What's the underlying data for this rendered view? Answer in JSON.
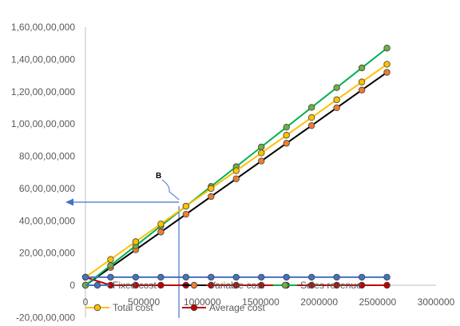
{
  "chart_data": {
    "type": "line",
    "title": "",
    "xlabel": "",
    "ylabel": "",
    "xlim": [
      0,
      3000000
    ],
    "ylim": [
      -200000000,
      1600000000
    ],
    "x_ticks": [
      "0",
      "500000",
      "1000000",
      "1500000",
      "2000000",
      "2500000",
      "3000000"
    ],
    "y_ticks": [
      "-20,00,00,000",
      "0",
      "20,00,00,000",
      "40,00,00,000",
      "60,00,00,000",
      "80,00,00,000",
      "1,00,00,00,000",
      "1,20,00,00,000",
      "1,40,00,00,000",
      "1,60,00,00,000"
    ],
    "grid": false,
    "legend_position": "bottom",
    "x": [
      0,
      215000,
      430000,
      645000,
      860000,
      1075000,
      1290000,
      1505000,
      1720000,
      1935000,
      2150000,
      2365000,
      2580000
    ],
    "series": [
      {
        "name": "Fixed cost",
        "color": "#4472C4",
        "marker": "#4472C4",
        "values": [
          50000000,
          50000000,
          50000000,
          50000000,
          50000000,
          50000000,
          50000000,
          50000000,
          50000000,
          50000000,
          50000000,
          50000000,
          50000000
        ]
      },
      {
        "name": "Variable cost",
        "color": "#000000",
        "marker": "#ED7D31",
        "values": [
          0,
          110000000,
          220000000,
          330000000,
          440000000,
          550000000,
          660000000,
          770000000,
          880000000,
          990000000,
          1100000000,
          1210000000,
          1320000000
        ]
      },
      {
        "name": "Sales revenue",
        "color": "#00B050",
        "marker": "#70AD47",
        "values": [
          0,
          122500000,
          245000000,
          367500000,
          490000000,
          612500000,
          735000000,
          857500000,
          980000000,
          1102500000,
          1225000000,
          1347500000,
          1470000000
        ]
      },
      {
        "name": "Total cost",
        "color": "#FFC000",
        "marker": "#FFC000",
        "values": [
          50000000,
          160000000,
          270000000,
          380000000,
          490000000,
          600000000,
          710000000,
          820000000,
          930000000,
          1040000000,
          1150000000,
          1260000000,
          1370000000
        ]
      },
      {
        "name": "Average cost",
        "color": "#C00000",
        "marker": "#C00000",
        "values": [
          null,
          0,
          0,
          0,
          0,
          0,
          0,
          0,
          0,
          0,
          0,
          0,
          0
        ]
      }
    ],
    "annotation": {
      "label": "B",
      "x": 800000,
      "y": 490000000,
      "arrow_to_y_axis": true
    }
  }
}
